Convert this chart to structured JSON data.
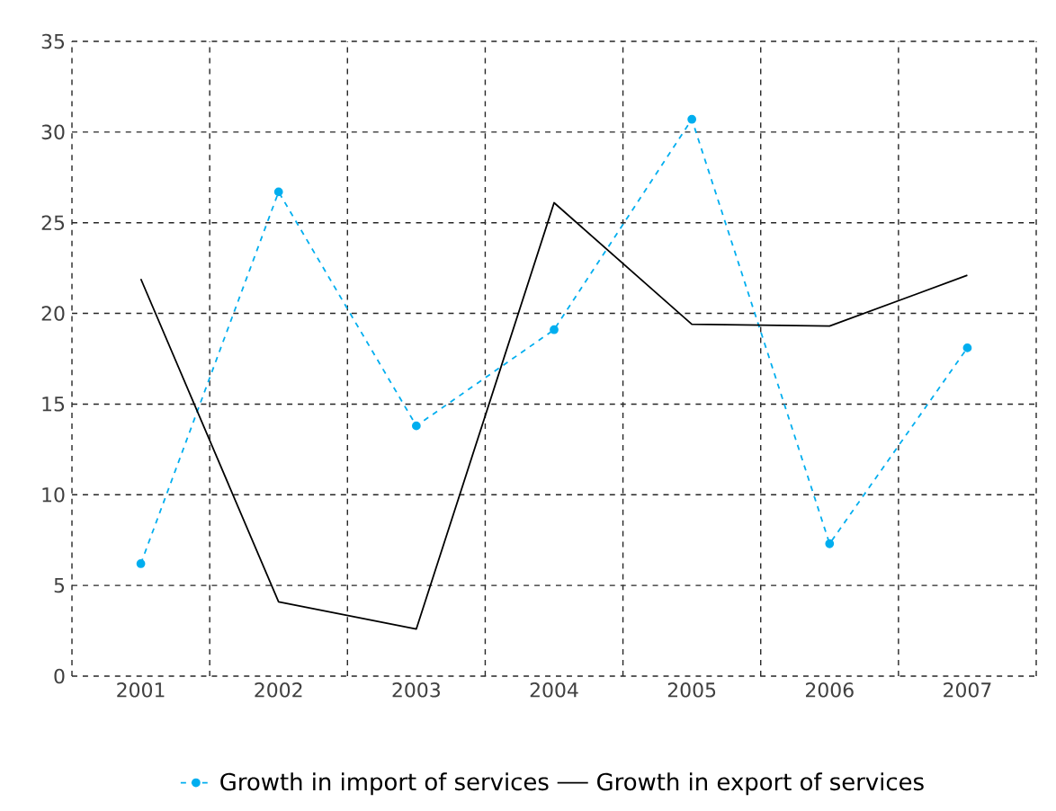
{
  "chart_data": {
    "type": "line",
    "categories": [
      "2001",
      "2002",
      "2003",
      "2004",
      "2005",
      "2006",
      "2007"
    ],
    "series": [
      {
        "name": "Growth in import of services",
        "color": "#00aeef",
        "line_style": "dashed",
        "marker": "circle",
        "values": [
          6.2,
          26.7,
          13.8,
          19.1,
          30.7,
          7.3,
          18.1
        ]
      },
      {
        "name": "Growth in export of services",
        "color": "#000000",
        "line_style": "solid",
        "marker": "none",
        "values": [
          21.9,
          4.1,
          2.6,
          26.1,
          19.4,
          19.3,
          22.1
        ]
      }
    ],
    "ylim": [
      0,
      35
    ],
    "yticks": [
      0,
      5,
      10,
      15,
      20,
      25,
      30,
      35
    ],
    "grid": true,
    "legend": "bottom"
  }
}
